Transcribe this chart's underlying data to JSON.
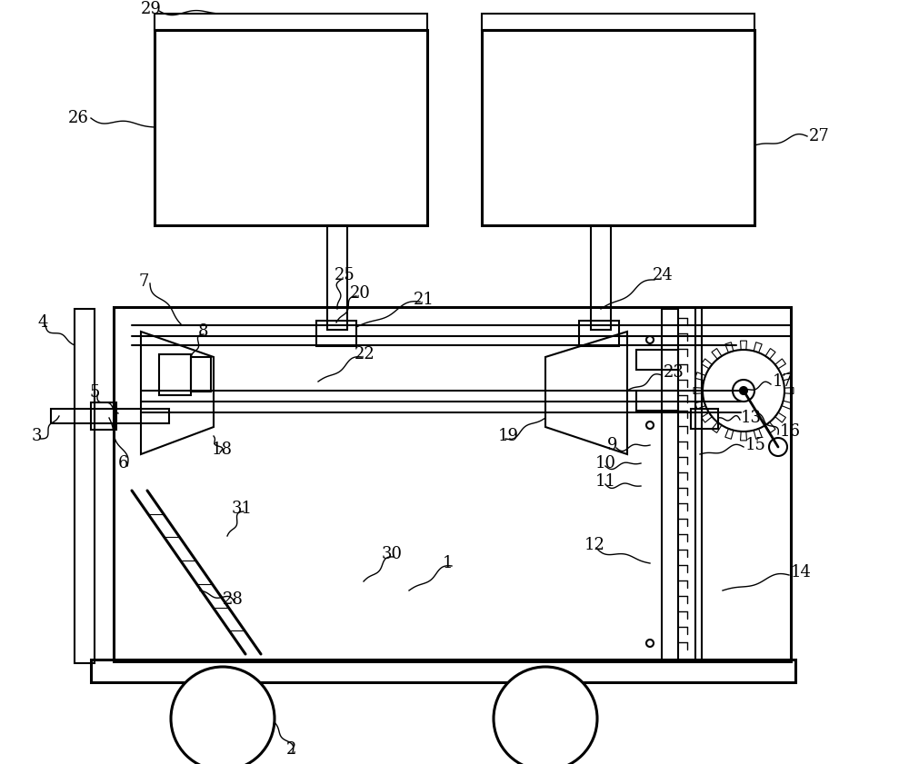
{
  "bg_color": "#ffffff",
  "lc": "#000000",
  "lw": 1.5,
  "tlw": 2.2,
  "fig_w": 10.0,
  "fig_h": 8.41,
  "dpi": 100
}
